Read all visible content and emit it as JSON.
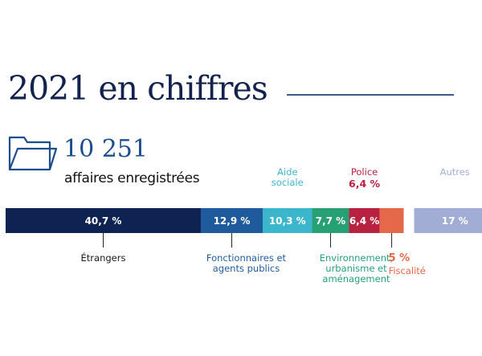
{
  "header": {
    "title": "2021 en chiffres"
  },
  "summary": {
    "number": "10 251",
    "label": "affaires enregistrées"
  },
  "chart_data": {
    "type": "bar",
    "orientation": "horizontal-stacked",
    "unit": "%",
    "segments": [
      {
        "name": "Étrangers",
        "value": 40.7,
        "value_label": "40,7 %",
        "label_position": "below",
        "color": "#0e2352",
        "label_color": "#1a1a1a"
      },
      {
        "name": "Fonctionnaires et agents publics",
        "value": 12.9,
        "value_label": "12,9 %",
        "label_position": "below",
        "color": "#1f5a9c",
        "label_color": "#1f5a9c"
      },
      {
        "name": "Aide sociale",
        "value": 10.3,
        "value_label": "10,3 %",
        "label_position": "above",
        "color": "#3cb6cc",
        "label_color": "#3cb6cc"
      },
      {
        "name": "Environnement, urbanisme et aménagement",
        "value": 7.7,
        "value_label": "7,7 %",
        "label_position": "below",
        "color": "#26a074",
        "label_color": "#26a074"
      },
      {
        "name": "Police",
        "value": 6.4,
        "value_label": "6,4 %",
        "label_position": "above",
        "color": "#b8213f",
        "label_color": "#b8213f"
      },
      {
        "name": "Fiscalité",
        "value": 5,
        "value_label": "5 %",
        "label_position": "below",
        "color": "#e5684a",
        "label_color": "#e5684a"
      },
      {
        "name": "Autres",
        "value": 17,
        "value_label": "17 %",
        "label_position": "above",
        "color": "#a2add6",
        "label_color": "#a2add6"
      }
    ]
  }
}
